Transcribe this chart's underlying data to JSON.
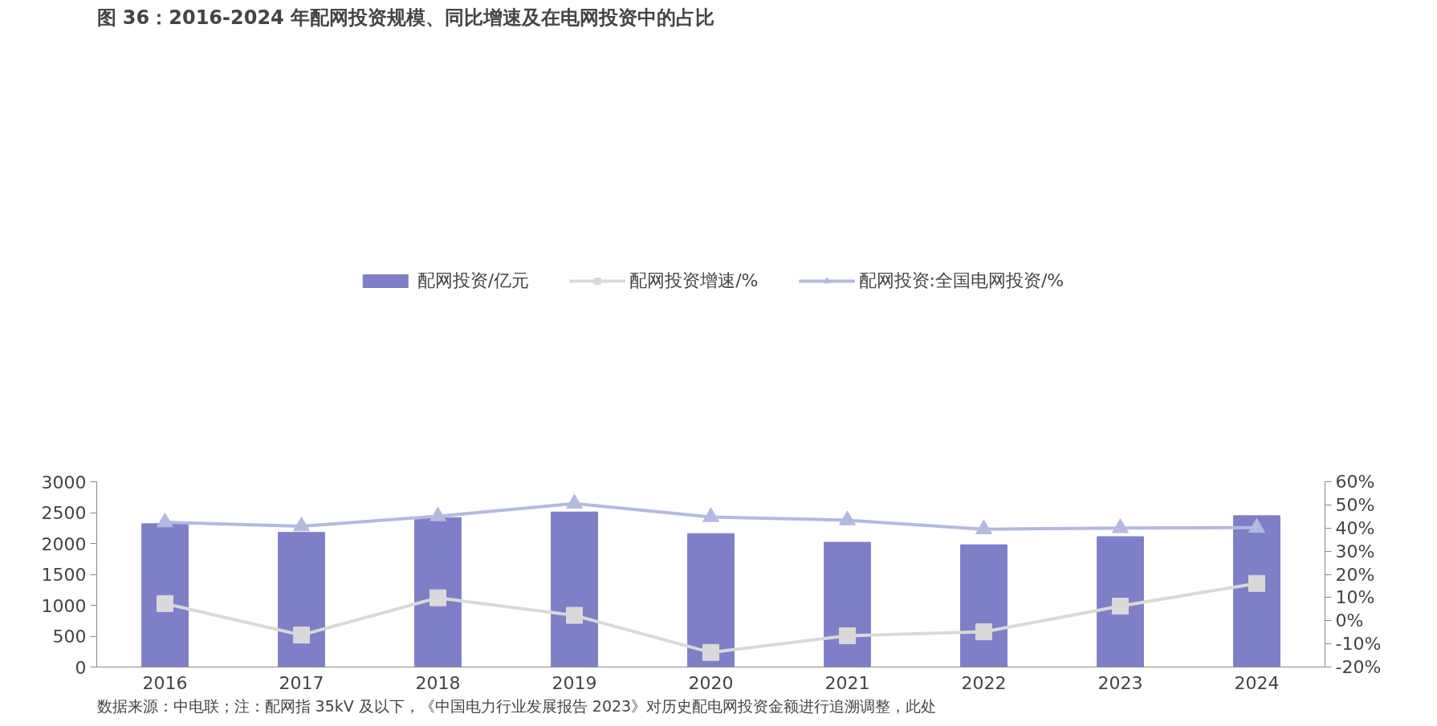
{
  "chart_data": {
    "type": "bar",
    "title": "图 36：2016-2024 年配网投资规模、同比增速及在电网投资中的占比",
    "categories": [
      "2016",
      "2017",
      "2018",
      "2019",
      "2020",
      "2021",
      "2022",
      "2023",
      "2024"
    ],
    "series": [
      {
        "name": "配网投资/亿元",
        "color": "#7f7fc8",
        "values": [
          2320,
          2180,
          2420,
          2510,
          2160,
          2020,
          1980,
          2110,
          2450
        ]
      },
      {
        "name": "配网投资增速/%",
        "type": "line",
        "axis": "y2",
        "marker": "square",
        "color": "#d9d9d9",
        "values": [
          7.4,
          -6.2,
          9.9,
          2.3,
          -13.7,
          -6.5,
          -4.8,
          6.3,
          16.1
        ]
      },
      {
        "name": "配网投资:全国电网投资/%",
        "type": "line",
        "axis": "y2",
        "marker": "triangle",
        "color": "#b4b9e0",
        "values": [
          42.5,
          40.8,
          45.1,
          50.6,
          44.8,
          43.4,
          39.5,
          40.0,
          40.2
        ]
      }
    ],
    "ylim": [
      0,
      3000
    ],
    "yticks": [
      0,
      500,
      1000,
      1500,
      2000,
      2500,
      3000
    ],
    "y2lim": [
      -20,
      60
    ],
    "y2ticks": [
      {
        "value": -20,
        "label": "-20%"
      },
      {
        "value": -10,
        "label": "-10%"
      },
      {
        "value": 0,
        "label": "0%"
      },
      {
        "value": 10,
        "label": "10%"
      },
      {
        "value": 20,
        "label": "20%"
      },
      {
        "value": 30,
        "label": "30%"
      },
      {
        "value": 40,
        "label": "40%"
      },
      {
        "value": 50,
        "label": "50%"
      },
      {
        "value": 60,
        "label": "60%"
      }
    ],
    "legend": "top",
    "grid": false,
    "annotations": [
      "数据来源：中电联；注：配网指 35kV 及以下，《中国电力行业发展报告 2023》对历史配电网投资金额进行追溯调整，此处"
    ]
  }
}
